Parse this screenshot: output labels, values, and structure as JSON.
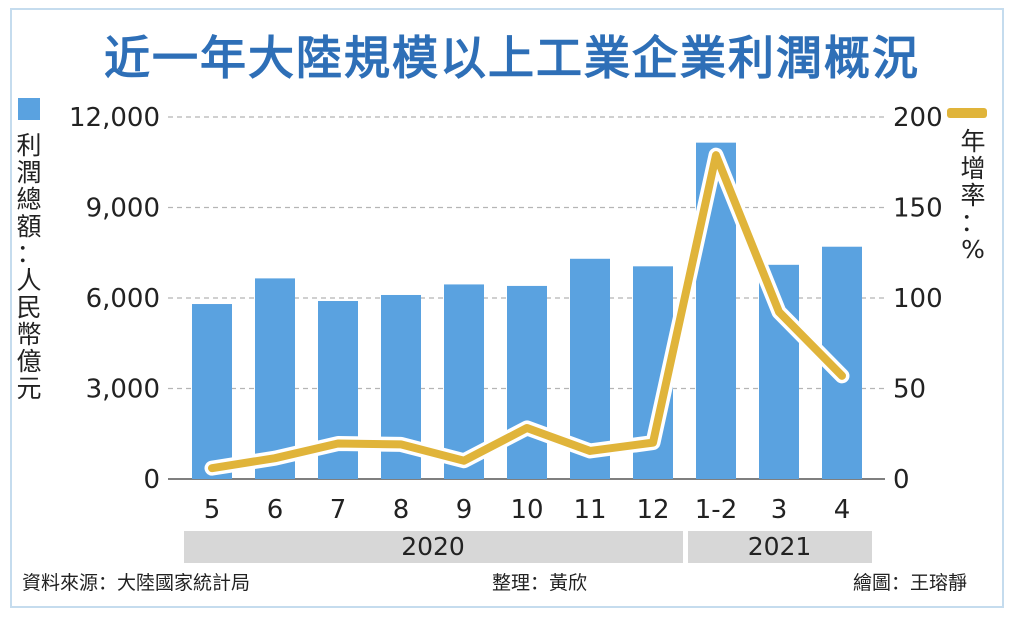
{
  "chart_data": {
    "type": "bar+line",
    "title": "近一年大陸規模以上工業企業利潤概況",
    "categories": [
      "5",
      "6",
      "7",
      "8",
      "9",
      "10",
      "11",
      "12",
      "1-2",
      "3",
      "4"
    ],
    "series": [
      {
        "type": "bar",
        "axis": "left",
        "color": "#5aa2e0",
        "values": [
          5800,
          6650,
          5900,
          6100,
          6450,
          6400,
          7300,
          7050,
          11150,
          7100,
          7700
        ]
      },
      {
        "type": "line",
        "axis": "right",
        "color": "#e0b43a",
        "values": [
          6.0,
          11.5,
          19.6,
          19.1,
          10.1,
          28.2,
          15.5,
          20.1,
          178.9,
          92.3,
          57.0
        ]
      }
    ],
    "y_left": {
      "label": "利潤總額：人民幣億元",
      "ylim": [
        0,
        12000
      ],
      "ticks": [
        0,
        3000,
        6000,
        9000,
        12000
      ],
      "tick_labels": [
        "0",
        "3,000",
        "6,000",
        "9,000",
        "12,000"
      ]
    },
    "y_right": {
      "label": "年增率：%",
      "ylim": [
        0,
        200
      ],
      "ticks": [
        0,
        50,
        100,
        150,
        200
      ],
      "tick_labels": [
        "0",
        "50",
        "100",
        "150",
        "200"
      ]
    },
    "year_groups": [
      {
        "label": "2020",
        "from": 0,
        "to": 7
      },
      {
        "label": "2021",
        "from": 8,
        "to": 10
      }
    ],
    "grid": true
  },
  "footer": {
    "source": "資料來源：大陸國家統計局",
    "editor": "整理：黃欣",
    "artist": "繪圖：王瑢靜"
  }
}
